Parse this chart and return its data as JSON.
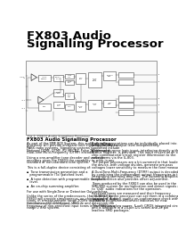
{
  "title_line1": "FX803 Audio",
  "title_line2": "Signalling Processor",
  "background": "#ffffff",
  "text_color": "#000000",
  "body_title": "FX803 Audio Signalling Processor",
  "publication": "Publication: D45/25 August 1997",
  "diagram_caption": "Fig 1. FX803 Audio Signalling Processor",
  "col_left": [
    "As part of the SME 800 System, this audio signalling",
    "processor will provide on-board tone signalling facility for",
    "PABX radio systems. Signalling systems supported include",
    "National DTMF, DTMF, R2 MFCR2, Pulse Telex/muxed",
    "Dual-Tone Multi-Frequency (DTMF) encoder.",
    "",
    "Using a one-amplifier tone decoder and versatile",
    "encoders gives the FX803 the capability to work in any",
    "standard or non-standard tone system.",
    "",
    "This is a full-duplex device consisting of:",
    "",
    "▪  Tone transmission generation and a",
    "   programmable (Tx) patched level.",
    "",
    "▪  A tone detection with programmable threshold",
    "   level.",
    "",
    "▪  An on-chip summing amplifier.",
    "",
    "For use with Single-Tone or Detection Out switches.",
    "",
    "Unlike the series of the predecessors, the \"IL-803,\" the",
    "FX803 will provide simultaneous, on-chip control of audio",
    "tones, in a measurement range 200Hz to 3900Hz",
    "simultaneously, and detect, decode and determine the",
    "frequency of non-predicted input tones in the frequency",
    "range 0 GHz system."
  ],
  "col_right": [
    "Both tone generations can be individually placed into a",
    "programmable output level independently.",
    "",
    "A general purpose logic input, interfacing directly with the",
    "Status Register, is provided. This input is used as an on-",
    "chip combinatorial circuit register information to the",
    "subsystems via the IL-803.",
    "",
    "The output processors are a bit-summed in that loaded to",
    "the device, with voltage divides, generate pre-pass",
    "voltages lower sensitivity to measure the tone measured.",
    "",
    "A Dual-Tone-Multi-Frequency (DTMF) output is decoded",
    "by combining the independent output frequencies in the",
    "integrating summing amplifier. The Summing Amplifier",
    "output function also provides offset adjustment.",
    "",
    "Tones produced by the FX803 can also be used in the",
    "SME/800 system for multiplication and detect signals and",
    "to 'QUE' audio indications for the operation.",
    "",
    "Received tones are measured and their frequency",
    "confirmed so the processor can set them in a combined",
    "data word. A quick quality on-conformance check with",
    "offset in programmed/control indicates for now.",
    "",
    "The FX803 is a low power, 5 volt CMOS integrated circuit",
    "and is available in a 24-pin DIL series and 28 pin",
    "leadless SMD packages."
  ]
}
